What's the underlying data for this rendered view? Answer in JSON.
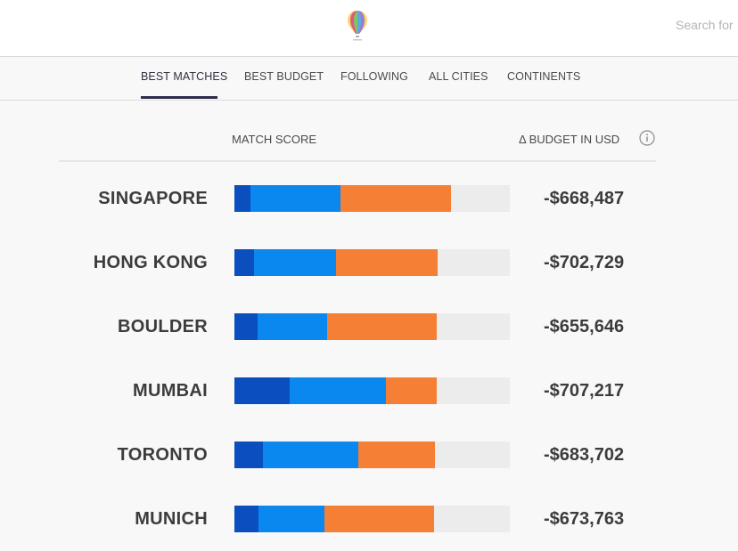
{
  "header": {
    "logo_icon": "hot-air-balloon-icon",
    "search_placeholder": "Search for"
  },
  "tabs": [
    {
      "label": "BEST MATCHES",
      "active": true
    },
    {
      "label": "BEST BUDGET",
      "active": false
    },
    {
      "label": "FOLLOWING",
      "active": false
    },
    {
      "label": "ALL CITIES",
      "active": false
    },
    {
      "label": "CONTINENTS",
      "active": false
    }
  ],
  "table": {
    "match_score_label": "MATCH SCORE",
    "budget_label": "Δ BUDGET IN USD",
    "info_icon": "info-icon",
    "colors": {
      "seg_a": "#0b4fbf",
      "seg_b": "#0a88f0",
      "seg_c": "#f57f35",
      "track": "#ececec"
    },
    "rows": [
      {
        "city": "SINGAPORE",
        "budget": "-$668,487",
        "segments": [
          0.058,
          0.327,
          0.401
        ]
      },
      {
        "city": "HONG KONG",
        "budget": "-$702,729",
        "segments": [
          0.071,
          0.298,
          0.369
        ]
      },
      {
        "city": "BOULDER",
        "budget": "-$655,646",
        "segments": [
          0.084,
          0.252,
          0.398
        ]
      },
      {
        "city": "MUMBAI",
        "budget": "-$707,217",
        "segments": [
          0.201,
          0.349,
          0.184
        ]
      },
      {
        "city": "TORONTO",
        "budget": "-$683,702",
        "segments": [
          0.104,
          0.346,
          0.278
        ]
      },
      {
        "city": "MUNICH",
        "budget": "-$673,763",
        "segments": [
          0.087,
          0.239,
          0.398
        ]
      }
    ]
  }
}
